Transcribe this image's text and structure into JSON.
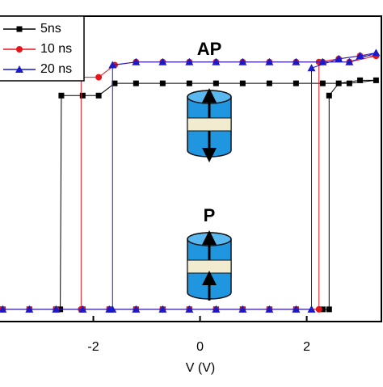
{
  "chart_data": {
    "type": "line",
    "x_label": "V (V)",
    "xlim": [
      -3.75,
      3.4
    ],
    "xticks": [
      -2,
      0,
      2
    ],
    "ylim": [
      0,
      1
    ],
    "annotations": [
      "AP",
      "P"
    ],
    "legend": "upper left",
    "series": [
      {
        "name": "5ns",
        "color": "#000000",
        "marker": "square",
        "x": [
          -3.7,
          -3.2,
          -2.7,
          -2.2,
          -1.7,
          -1.2,
          -0.7,
          -0.2,
          0.3,
          0.8,
          1.3,
          1.8,
          2.3,
          2.42,
          2.42,
          2.6,
          3.0,
          3.3,
          2.8,
          2.3,
          1.8,
          1.3,
          0.8,
          0.3,
          -0.2,
          -0.7,
          -1.2,
          -1.6,
          -1.9,
          -2.2,
          -2.6,
          -2.62
        ],
        "values": [
          0.04,
          0.04,
          0.04,
          0.04,
          0.04,
          0.04,
          0.04,
          0.04,
          0.04,
          0.04,
          0.04,
          0.04,
          0.04,
          0.04,
          0.74,
          0.78,
          0.79,
          0.79,
          0.78,
          0.78,
          0.78,
          0.78,
          0.78,
          0.78,
          0.78,
          0.78,
          0.78,
          0.78,
          0.74,
          0.74,
          0.74,
          0.04
        ]
      },
      {
        "name": "10 ns",
        "color": "#e8141b",
        "marker": "circle",
        "x": [
          -3.7,
          -3.2,
          -2.7,
          -2.2,
          -1.7,
          -1.2,
          -0.7,
          -0.2,
          0.3,
          0.8,
          1.3,
          1.8,
          2.23,
          2.23,
          2.6,
          3.0,
          3.3,
          2.8,
          2.3,
          1.8,
          1.3,
          0.8,
          0.3,
          -0.2,
          -0.7,
          -1.2,
          -1.6,
          -1.9,
          -2.23,
          -2.23
        ],
        "values": [
          0.04,
          0.04,
          0.04,
          0.04,
          0.04,
          0.04,
          0.04,
          0.04,
          0.04,
          0.04,
          0.04,
          0.04,
          0.04,
          0.85,
          0.86,
          0.87,
          0.87,
          0.85,
          0.85,
          0.85,
          0.85,
          0.85,
          0.85,
          0.85,
          0.85,
          0.85,
          0.84,
          0.8,
          0.8,
          0.04
        ]
      },
      {
        "name": "20 ns",
        "color": "#1a1ac8",
        "marker": "triangle",
        "x": [
          -3.7,
          -3.2,
          -2.7,
          -2.2,
          -1.7,
          -1.2,
          -0.7,
          -0.2,
          0.3,
          0.8,
          1.3,
          1.8,
          2.09,
          2.09,
          2.6,
          3.0,
          3.3,
          2.8,
          2.3,
          1.8,
          1.3,
          0.8,
          0.3,
          -0.2,
          -0.7,
          -1.2,
          -1.64,
          -1.64
        ],
        "values": [
          0.04,
          0.04,
          0.04,
          0.04,
          0.04,
          0.04,
          0.04,
          0.04,
          0.04,
          0.04,
          0.04,
          0.04,
          0.04,
          0.83,
          0.86,
          0.87,
          0.88,
          0.85,
          0.85,
          0.85,
          0.85,
          0.85,
          0.85,
          0.85,
          0.85,
          0.85,
          0.84,
          0.04
        ]
      }
    ]
  }
}
